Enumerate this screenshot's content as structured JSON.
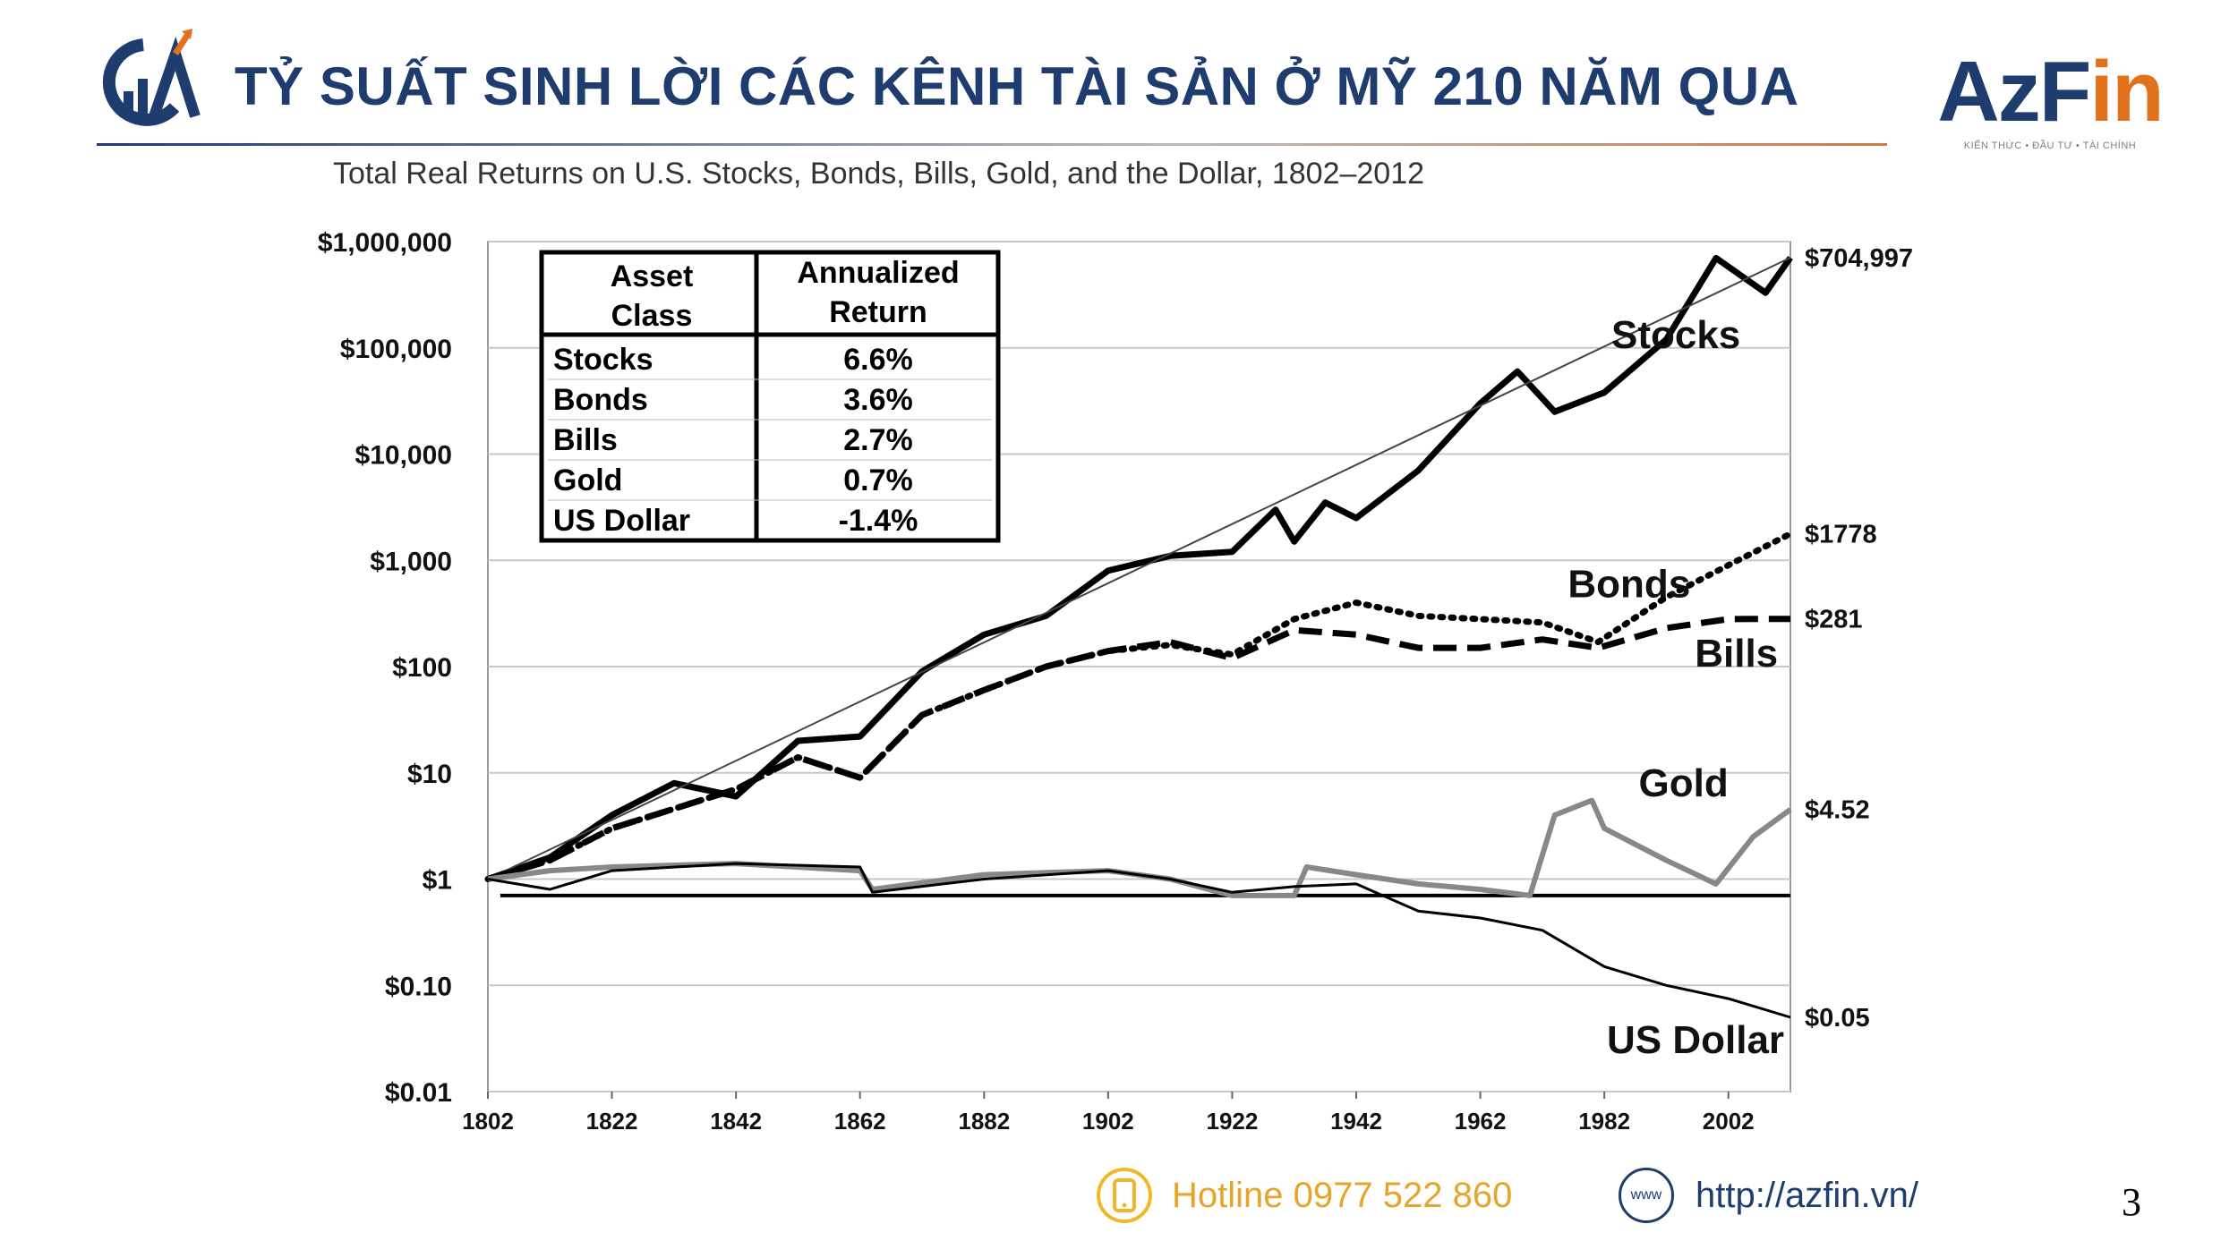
{
  "header": {
    "title": "TỶ SUẤT SINH LỜI CÁC KÊNH TÀI SẢN Ở MỸ 210 NĂM QUA"
  },
  "brand": {
    "name_part1": "AzF",
    "name_part2": "in",
    "tagline": "KIẾN THỨC • ĐẦU TƯ • TÀI CHÍNH"
  },
  "colors": {
    "title": "#1f3c6e",
    "accent": "#e2711d",
    "hotline": "#e6a52a",
    "gold_series": "#888888"
  },
  "chart_data": {
    "type": "line",
    "title": "Total Real Returns on U.S. Stocks, Bonds, Bills, Gold, and the Dollar, 1802–2012",
    "yscale": "log",
    "ylim": [
      0.01,
      1000000
    ],
    "xlim": [
      1802,
      2012
    ],
    "y_ticks": [
      {
        "value": 1000000,
        "label": "$1,000,000"
      },
      {
        "value": 100000,
        "label": "$100,000"
      },
      {
        "value": 10000,
        "label": "$10,000"
      },
      {
        "value": 1000,
        "label": "$1,000"
      },
      {
        "value": 100,
        "label": "$100"
      },
      {
        "value": 10,
        "label": "$10"
      },
      {
        "value": 1,
        "label": "$1"
      },
      {
        "value": 0.1,
        "label": "$0.10"
      },
      {
        "value": 0.01,
        "label": "$0.01"
      }
    ],
    "x_ticks": [
      {
        "value": 1802,
        "label": "1802"
      },
      {
        "value": 1822,
        "label": "1822"
      },
      {
        "value": 1842,
        "label": "1842"
      },
      {
        "value": 1862,
        "label": "1862"
      },
      {
        "value": 1882,
        "label": "1882"
      },
      {
        "value": 1902,
        "label": "1902"
      },
      {
        "value": 1922,
        "label": "1922"
      },
      {
        "value": 1942,
        "label": "1942"
      },
      {
        "value": 1962,
        "label": "1962"
      },
      {
        "value": 1982,
        "label": "1982"
      },
      {
        "value": 2002,
        "label": "2002"
      }
    ],
    "gridlines": true,
    "baseline_value": 0.7,
    "series": [
      {
        "name": "Stocks",
        "style": "solid-thick",
        "end_label": "$704,997",
        "points": [
          [
            1802,
            1
          ],
          [
            1812,
            1.6
          ],
          [
            1822,
            4
          ],
          [
            1832,
            8
          ],
          [
            1842,
            6
          ],
          [
            1852,
            20
          ],
          [
            1862,
            22
          ],
          [
            1872,
            90
          ],
          [
            1882,
            200
          ],
          [
            1892,
            300
          ],
          [
            1902,
            800
          ],
          [
            1912,
            1100
          ],
          [
            1922,
            1200
          ],
          [
            1929,
            3000
          ],
          [
            1932,
            1500
          ],
          [
            1937,
            3500
          ],
          [
            1942,
            2500
          ],
          [
            1952,
            7000
          ],
          [
            1962,
            30000
          ],
          [
            1968,
            60000
          ],
          [
            1974,
            25000
          ],
          [
            1982,
            38000
          ],
          [
            1992,
            120000
          ],
          [
            2000,
            700000
          ],
          [
            2008,
            330000
          ],
          [
            2012,
            704997
          ]
        ]
      },
      {
        "name": "Stocks trend",
        "style": "thin",
        "points": [
          [
            1802,
            1
          ],
          [
            2012,
            704997
          ]
        ]
      },
      {
        "name": "Bonds",
        "style": "dotted",
        "end_label": "$1778",
        "points": [
          [
            1802,
            1
          ],
          [
            1812,
            1.5
          ],
          [
            1822,
            3
          ],
          [
            1842,
            7
          ],
          [
            1852,
            14
          ],
          [
            1862,
            9
          ],
          [
            1872,
            35
          ],
          [
            1882,
            60
          ],
          [
            1892,
            100
          ],
          [
            1902,
            140
          ],
          [
            1912,
            160
          ],
          [
            1922,
            130
          ],
          [
            1932,
            280
          ],
          [
            1942,
            400
          ],
          [
            1952,
            300
          ],
          [
            1962,
            280
          ],
          [
            1972,
            260
          ],
          [
            1981,
            170
          ],
          [
            1992,
            450
          ],
          [
            2002,
            900
          ],
          [
            2012,
            1778
          ]
        ]
      },
      {
        "name": "Bills",
        "style": "dashed",
        "end_label": "$281",
        "points": [
          [
            1802,
            1
          ],
          [
            1812,
            1.5
          ],
          [
            1822,
            3
          ],
          [
            1842,
            7
          ],
          [
            1852,
            14
          ],
          [
            1862,
            9
          ],
          [
            1872,
            35
          ],
          [
            1882,
            60
          ],
          [
            1892,
            100
          ],
          [
            1902,
            140
          ],
          [
            1912,
            170
          ],
          [
            1922,
            120
          ],
          [
            1932,
            220
          ],
          [
            1942,
            200
          ],
          [
            1952,
            150
          ],
          [
            1962,
            150
          ],
          [
            1972,
            180
          ],
          [
            1981,
            150
          ],
          [
            1992,
            230
          ],
          [
            2002,
            280
          ],
          [
            2012,
            281
          ]
        ]
      },
      {
        "name": "Gold",
        "style": "solid-gray",
        "end_label": "$4.52",
        "points": [
          [
            1802,
            1
          ],
          [
            1812,
            1.2
          ],
          [
            1822,
            1.3
          ],
          [
            1842,
            1.4
          ],
          [
            1862,
            1.2
          ],
          [
            1864,
            0.8
          ],
          [
            1882,
            1.1
          ],
          [
            1902,
            1.2
          ],
          [
            1912,
            1.0
          ],
          [
            1922,
            0.7
          ],
          [
            1932,
            0.7
          ],
          [
            1934,
            1.3
          ],
          [
            1942,
            1.1
          ],
          [
            1952,
            0.9
          ],
          [
            1962,
            0.8
          ],
          [
            1970,
            0.7
          ],
          [
            1974,
            4.0
          ],
          [
            1980,
            5.5
          ],
          [
            1982,
            3.0
          ],
          [
            1992,
            1.5
          ],
          [
            2000,
            0.9
          ],
          [
            2006,
            2.5
          ],
          [
            2012,
            4.52
          ]
        ]
      },
      {
        "name": "US Dollar",
        "style": "solid-thin",
        "end_label": "$0.05",
        "points": [
          [
            1802,
            1
          ],
          [
            1812,
            0.8
          ],
          [
            1822,
            1.2
          ],
          [
            1842,
            1.4
          ],
          [
            1862,
            1.3
          ],
          [
            1864,
            0.75
          ],
          [
            1882,
            1.0
          ],
          [
            1902,
            1.2
          ],
          [
            1912,
            1.0
          ],
          [
            1922,
            0.75
          ],
          [
            1932,
            0.85
          ],
          [
            1942,
            0.9
          ],
          [
            1952,
            0.5
          ],
          [
            1962,
            0.43
          ],
          [
            1972,
            0.33
          ],
          [
            1982,
            0.15
          ],
          [
            1992,
            0.1
          ],
          [
            2002,
            0.075
          ],
          [
            2012,
            0.05
          ]
        ]
      }
    ],
    "series_labels": [
      {
        "name": "Stocks",
        "text": "Stocks"
      },
      {
        "name": "Bonds",
        "text": "Bonds"
      },
      {
        "name": "Bills",
        "text": "Bills"
      },
      {
        "name": "Gold",
        "text": "Gold"
      },
      {
        "name": "US Dollar",
        "text": "US Dollar"
      }
    ],
    "table": {
      "headers": [
        "Asset Class",
        "Annualized Return"
      ],
      "rows": [
        [
          "Stocks",
          "6.6%"
        ],
        [
          "Bonds",
          "3.6%"
        ],
        [
          "Bills",
          "2.7%"
        ],
        [
          "Gold",
          "0.7%"
        ],
        [
          "US Dollar",
          "-1.4%"
        ]
      ]
    }
  },
  "footer": {
    "hotline": "Hotline 0977 522 860",
    "website": "http://azfin.vn/",
    "www_icon_text": "www",
    "page_number": "3"
  }
}
